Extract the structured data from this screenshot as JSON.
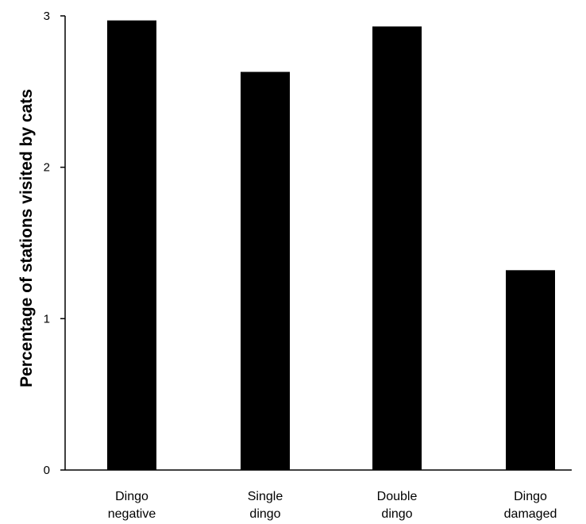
{
  "chart_data": {
    "type": "bar",
    "title": "",
    "xlabel": "",
    "ylabel": "Percentage of stations visited by cats",
    "ylim": [
      0,
      3
    ],
    "yticks": [
      0,
      1,
      2,
      3
    ],
    "grid": false,
    "bar_color": "#000000",
    "categories": [
      [
        "Dingo",
        "negative"
      ],
      [
        "Single",
        "dingo"
      ],
      [
        "Double",
        "dingo"
      ],
      [
        "Dingo",
        "damaged"
      ]
    ],
    "values": [
      2.97,
      2.63,
      2.93,
      1.32
    ]
  }
}
